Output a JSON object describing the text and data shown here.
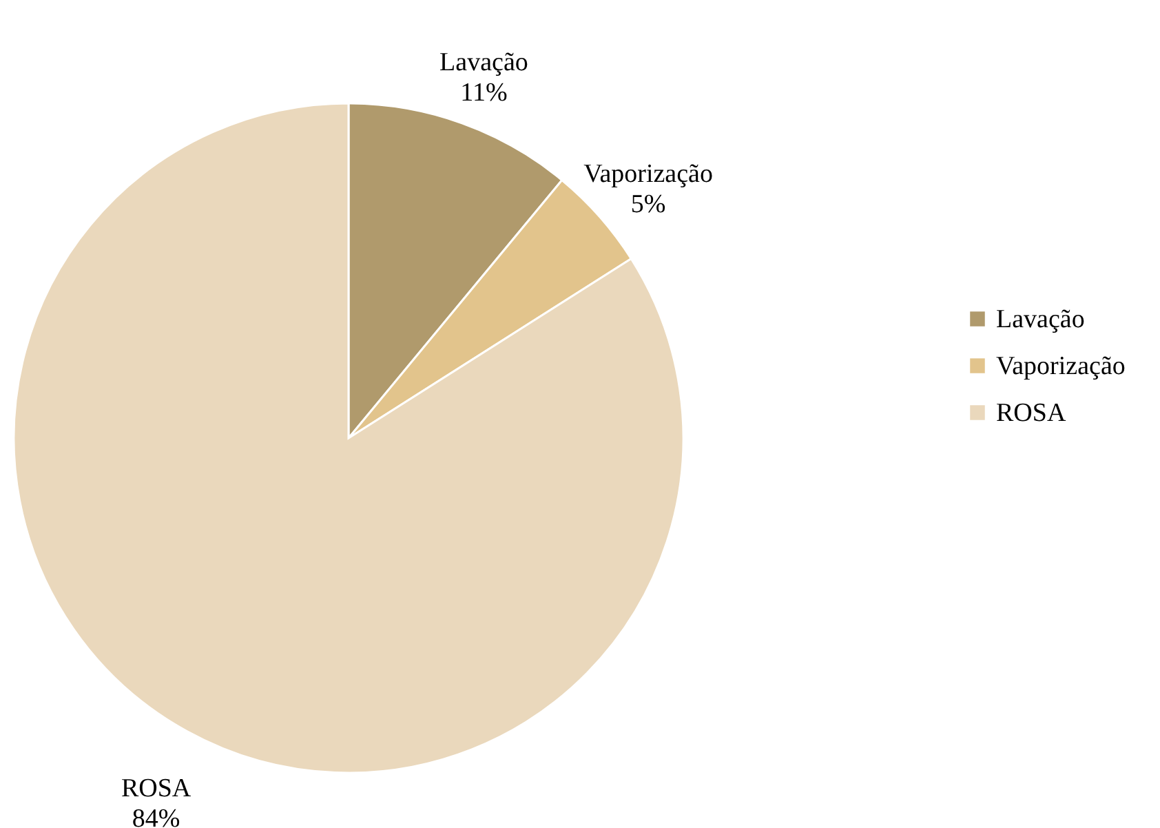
{
  "chart_data": {
    "type": "pie",
    "categories": [
      "Lavação",
      "Vaporização",
      "ROSA"
    ],
    "values": [
      11,
      5,
      84
    ],
    "value_labels": [
      "11%",
      "5%",
      "84%"
    ],
    "colors": [
      "#b09a6c",
      "#e2c48c",
      "#ead8bc"
    ],
    "legend": "right"
  }
}
